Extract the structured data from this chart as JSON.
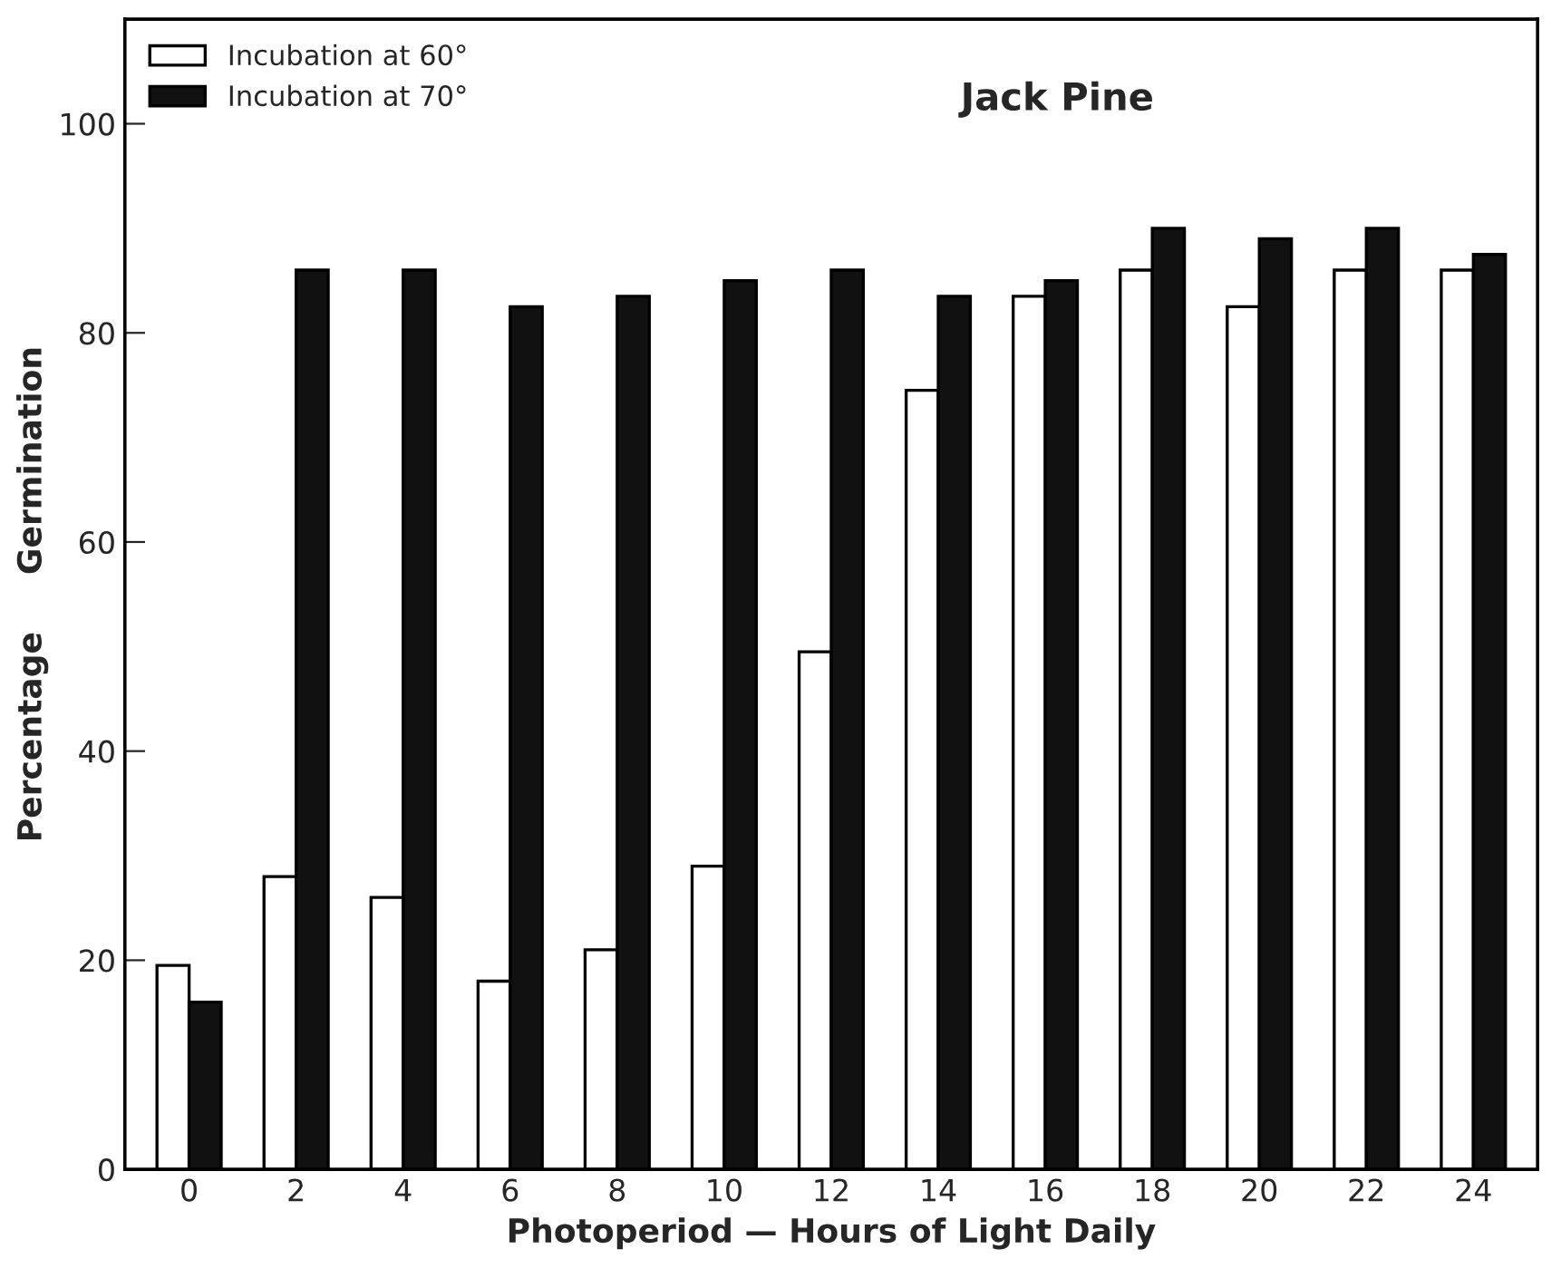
{
  "chart_data": {
    "type": "bar",
    "title": "Jack Pine",
    "xlabel": "Photoperiod — Hours of Light Daily",
    "ylabel": "Percentage     Germination",
    "categories": [
      "0",
      "2",
      "4",
      "6",
      "8",
      "10",
      "12",
      "14",
      "16",
      "18",
      "20",
      "22",
      "24"
    ],
    "series": [
      {
        "name": "Incubation at 60°",
        "color": "#ffffff",
        "values": [
          19.5,
          28,
          26,
          18,
          21,
          29,
          49.5,
          74.5,
          83.5,
          86,
          82.5,
          86,
          86
        ]
      },
      {
        "name": "Incubation at 70°",
        "color": "#111111",
        "values": [
          16,
          86,
          86,
          82.5,
          83.5,
          85,
          86,
          83.5,
          85,
          90,
          89,
          90,
          87.5
        ]
      }
    ],
    "ylim": [
      0,
      110
    ],
    "yticks": [
      0,
      20,
      40,
      60,
      80,
      100
    ],
    "grid": false,
    "legend": "top left"
  }
}
